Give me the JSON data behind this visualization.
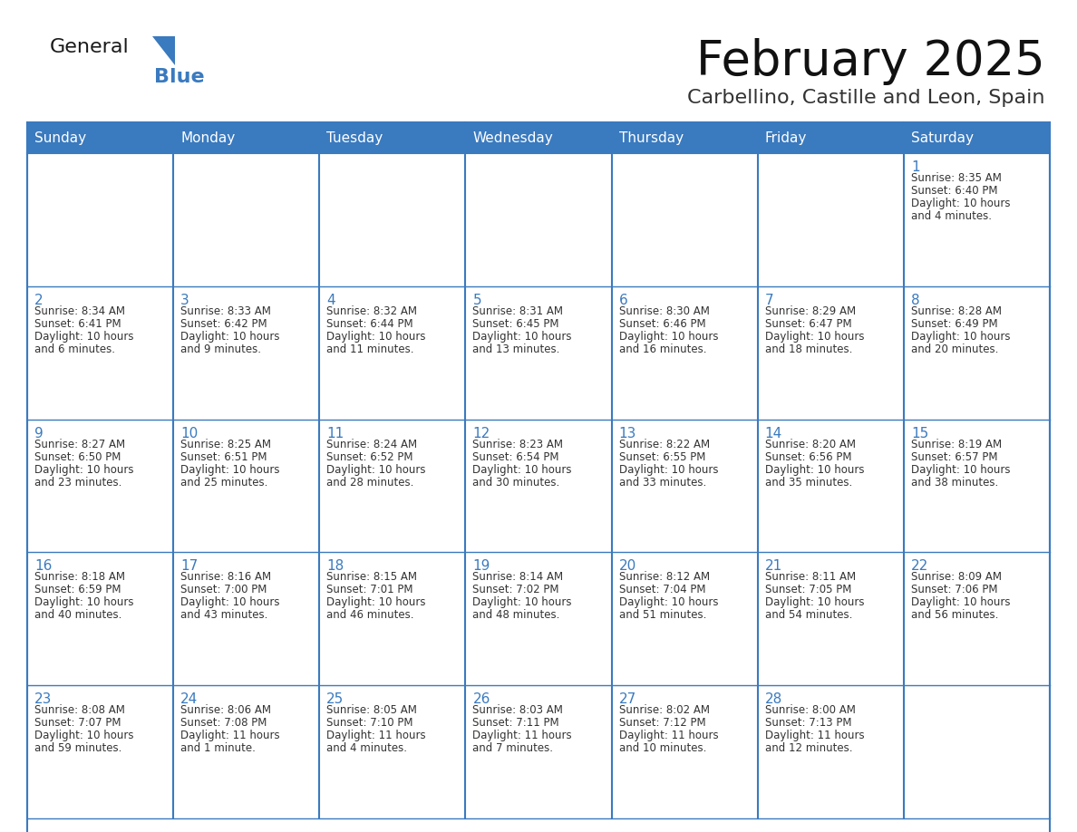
{
  "title": "February 2025",
  "subtitle": "Carbellino, Castille and Leon, Spain",
  "header_bg": "#3a7abf",
  "header_text_color": "#ffffff",
  "border_color": "#3a7abf",
  "day_num_color": "#3a7abf",
  "text_color": "#333333",
  "cell_bg": "#ffffff",
  "day_headers": [
    "Sunday",
    "Monday",
    "Tuesday",
    "Wednesday",
    "Thursday",
    "Friday",
    "Saturday"
  ],
  "days_data": [
    {
      "day": 1,
      "col": 6,
      "row": 0,
      "sunrise": "8:35 AM",
      "sunset": "6:40 PM",
      "daylight": "10 hours and 4 minutes."
    },
    {
      "day": 2,
      "col": 0,
      "row": 1,
      "sunrise": "8:34 AM",
      "sunset": "6:41 PM",
      "daylight": "10 hours and 6 minutes."
    },
    {
      "day": 3,
      "col": 1,
      "row": 1,
      "sunrise": "8:33 AM",
      "sunset": "6:42 PM",
      "daylight": "10 hours and 9 minutes."
    },
    {
      "day": 4,
      "col": 2,
      "row": 1,
      "sunrise": "8:32 AM",
      "sunset": "6:44 PM",
      "daylight": "10 hours and 11 minutes."
    },
    {
      "day": 5,
      "col": 3,
      "row": 1,
      "sunrise": "8:31 AM",
      "sunset": "6:45 PM",
      "daylight": "10 hours and 13 minutes."
    },
    {
      "day": 6,
      "col": 4,
      "row": 1,
      "sunrise": "8:30 AM",
      "sunset": "6:46 PM",
      "daylight": "10 hours and 16 minutes."
    },
    {
      "day": 7,
      "col": 5,
      "row": 1,
      "sunrise": "8:29 AM",
      "sunset": "6:47 PM",
      "daylight": "10 hours and 18 minutes."
    },
    {
      "day": 8,
      "col": 6,
      "row": 1,
      "sunrise": "8:28 AM",
      "sunset": "6:49 PM",
      "daylight": "10 hours and 20 minutes."
    },
    {
      "day": 9,
      "col": 0,
      "row": 2,
      "sunrise": "8:27 AM",
      "sunset": "6:50 PM",
      "daylight": "10 hours and 23 minutes."
    },
    {
      "day": 10,
      "col": 1,
      "row": 2,
      "sunrise": "8:25 AM",
      "sunset": "6:51 PM",
      "daylight": "10 hours and 25 minutes."
    },
    {
      "day": 11,
      "col": 2,
      "row": 2,
      "sunrise": "8:24 AM",
      "sunset": "6:52 PM",
      "daylight": "10 hours and 28 minutes."
    },
    {
      "day": 12,
      "col": 3,
      "row": 2,
      "sunrise": "8:23 AM",
      "sunset": "6:54 PM",
      "daylight": "10 hours and 30 minutes."
    },
    {
      "day": 13,
      "col": 4,
      "row": 2,
      "sunrise": "8:22 AM",
      "sunset": "6:55 PM",
      "daylight": "10 hours and 33 minutes."
    },
    {
      "day": 14,
      "col": 5,
      "row": 2,
      "sunrise": "8:20 AM",
      "sunset": "6:56 PM",
      "daylight": "10 hours and 35 minutes."
    },
    {
      "day": 15,
      "col": 6,
      "row": 2,
      "sunrise": "8:19 AM",
      "sunset": "6:57 PM",
      "daylight": "10 hours and 38 minutes."
    },
    {
      "day": 16,
      "col": 0,
      "row": 3,
      "sunrise": "8:18 AM",
      "sunset": "6:59 PM",
      "daylight": "10 hours and 40 minutes."
    },
    {
      "day": 17,
      "col": 1,
      "row": 3,
      "sunrise": "8:16 AM",
      "sunset": "7:00 PM",
      "daylight": "10 hours and 43 minutes."
    },
    {
      "day": 18,
      "col": 2,
      "row": 3,
      "sunrise": "8:15 AM",
      "sunset": "7:01 PM",
      "daylight": "10 hours and 46 minutes."
    },
    {
      "day": 19,
      "col": 3,
      "row": 3,
      "sunrise": "8:14 AM",
      "sunset": "7:02 PM",
      "daylight": "10 hours and 48 minutes."
    },
    {
      "day": 20,
      "col": 4,
      "row": 3,
      "sunrise": "8:12 AM",
      "sunset": "7:04 PM",
      "daylight": "10 hours and 51 minutes."
    },
    {
      "day": 21,
      "col": 5,
      "row": 3,
      "sunrise": "8:11 AM",
      "sunset": "7:05 PM",
      "daylight": "10 hours and 54 minutes."
    },
    {
      "day": 22,
      "col": 6,
      "row": 3,
      "sunrise": "8:09 AM",
      "sunset": "7:06 PM",
      "daylight": "10 hours and 56 minutes."
    },
    {
      "day": 23,
      "col": 0,
      "row": 4,
      "sunrise": "8:08 AM",
      "sunset": "7:07 PM",
      "daylight": "10 hours and 59 minutes."
    },
    {
      "day": 24,
      "col": 1,
      "row": 4,
      "sunrise": "8:06 AM",
      "sunset": "7:08 PM",
      "daylight": "11 hours and 1 minute."
    },
    {
      "day": 25,
      "col": 2,
      "row": 4,
      "sunrise": "8:05 AM",
      "sunset": "7:10 PM",
      "daylight": "11 hours and 4 minutes."
    },
    {
      "day": 26,
      "col": 3,
      "row": 4,
      "sunrise": "8:03 AM",
      "sunset": "7:11 PM",
      "daylight": "11 hours and 7 minutes."
    },
    {
      "day": 27,
      "col": 4,
      "row": 4,
      "sunrise": "8:02 AM",
      "sunset": "7:12 PM",
      "daylight": "11 hours and 10 minutes."
    },
    {
      "day": 28,
      "col": 5,
      "row": 4,
      "sunrise": "8:00 AM",
      "sunset": "7:13 PM",
      "daylight": "11 hours and 12 minutes."
    }
  ],
  "num_rows": 5,
  "num_cols": 7,
  "logo_color_general": "#1a1a1a",
  "logo_color_blue": "#3a7abf",
  "logo_triangle_color": "#3a7abf"
}
